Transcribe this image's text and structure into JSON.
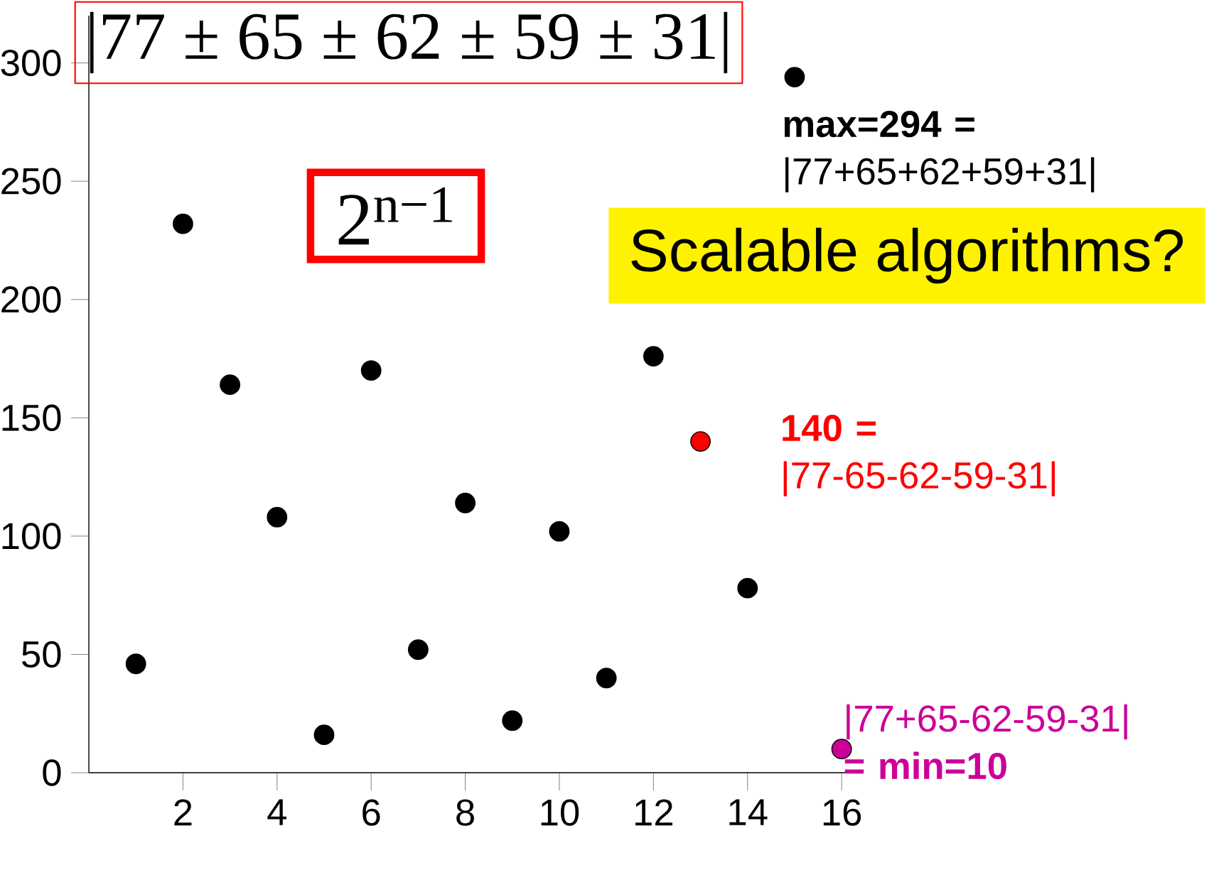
{
  "chart_data": {
    "type": "scatter",
    "title": "|77 ± 65 ± 62 ± 59 ± 31|",
    "x": [
      1,
      2,
      3,
      4,
      5,
      6,
      7,
      8,
      9,
      10,
      11,
      12,
      13,
      14,
      15,
      16
    ],
    "values": [
      46,
      232,
      164,
      108,
      16,
      170,
      52,
      114,
      22,
      102,
      40,
      176,
      140,
      78,
      294,
      10
    ],
    "colors": [
      "#000000",
      "#000000",
      "#000000",
      "#000000",
      "#000000",
      "#000000",
      "#000000",
      "#000000",
      "#000000",
      "#000000",
      "#000000",
      "#000000",
      "#ff0000",
      "#000000",
      "#000000",
      "#cc0099"
    ],
    "xlim": [
      0,
      16.3
    ],
    "ylim": [
      0,
      320
    ],
    "xticks": [
      2,
      4,
      6,
      8,
      10,
      12,
      14,
      16
    ],
    "yticks": [
      0,
      50,
      100,
      150,
      200,
      250,
      300
    ],
    "annotations": [
      "2$^{n−1}$",
      "Scalable algorithms?",
      {
        "text": "**max=294 =** |77+65+62+59+31|",
        "x": 15,
        "y": 294
      },
      {
        "text": "**140 =** |77-65-62-59-31|",
        "x": 13,
        "y": 140
      },
      {
        "text": "|77+65-62-59-31| **= min=10**",
        "x": 16,
        "y": 10
      }
    ]
  }
}
